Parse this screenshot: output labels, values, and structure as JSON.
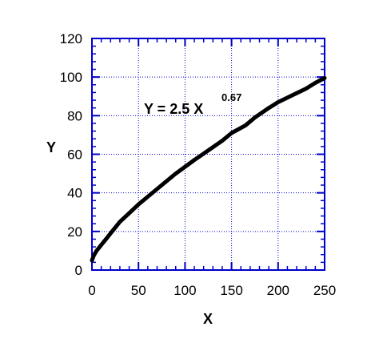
{
  "chart_data": {
    "type": "line",
    "title": "",
    "xlabel": "X",
    "ylabel": "Y",
    "xlim": [
      0,
      250
    ],
    "ylim": [
      0,
      120
    ],
    "x_ticks": [
      "0",
      "50",
      "100",
      "150",
      "200",
      "250"
    ],
    "y_ticks": [
      "0",
      "20",
      "40",
      "60",
      "80",
      "100",
      "120"
    ],
    "grid": true,
    "annotation": {
      "base": "Y = 2.5 X",
      "exponent": "0.67"
    },
    "series": [
      {
        "x": [
          0,
          2,
          5,
          10,
          15,
          20,
          25,
          30,
          40,
          50,
          60,
          75,
          90,
          100,
          110,
          125,
          140,
          150,
          165,
          175,
          190,
          200,
          215,
          230,
          240,
          250
        ],
        "y": [
          5.0,
          7.5,
          10.0,
          13.0,
          16.0,
          19.0,
          22.0,
          25.0,
          29.5,
          34.0,
          38.0,
          44.0,
          50.0,
          53.5,
          57.0,
          62.0,
          67.0,
          71.0,
          75.0,
          79.0,
          84.0,
          87.0,
          90.5,
          94.0,
          97.0,
          99.5
        ]
      }
    ],
    "colors": {
      "frame": "#0000cc",
      "line": "#000000",
      "text": "#000000"
    }
  }
}
